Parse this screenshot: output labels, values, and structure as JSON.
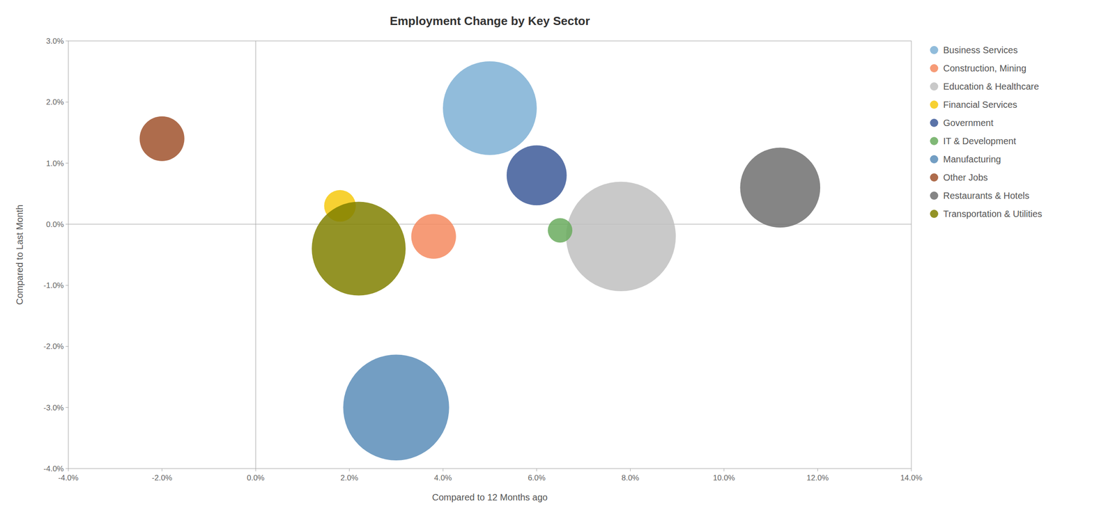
{
  "chart_data": {
    "type": "bubble",
    "title": "Employment Change by Key Sector",
    "x_label": "Compared to 12 Months ago",
    "y_label": "Compared to Last Month",
    "xlim": [
      -0.04,
      0.14
    ],
    "ylim": [
      -0.04,
      0.03
    ],
    "xticks": [
      {
        "value": -0.04,
        "label": "-4.0%"
      },
      {
        "value": -0.02,
        "label": "-2.0%"
      },
      {
        "value": 0.0,
        "label": "0.0%"
      },
      {
        "value": 0.02,
        "label": "2.0%"
      },
      {
        "value": 0.04,
        "label": "4.0%"
      },
      {
        "value": 0.06,
        "label": "6.0%"
      },
      {
        "value": 0.08,
        "label": "8.0%"
      },
      {
        "value": 0.1,
        "label": "10.0%"
      },
      {
        "value": 0.12,
        "label": "12.0%"
      },
      {
        "value": 0.14,
        "label": "14.0%"
      }
    ],
    "yticks": [
      {
        "value": -0.04,
        "label": "-4.0%"
      },
      {
        "value": -0.03,
        "label": "-3.0%"
      },
      {
        "value": -0.02,
        "label": "-2.0%"
      },
      {
        "value": -0.01,
        "label": "-1.0%"
      },
      {
        "value": 0.0,
        "label": "0.0%"
      },
      {
        "value": 0.01,
        "label": "1.0%"
      },
      {
        "value": 0.02,
        "label": "2.0%"
      },
      {
        "value": 0.03,
        "label": "3.0%"
      }
    ],
    "grid": false,
    "legend": "right",
    "series": [
      {
        "name": "Business Services",
        "color": "#7EB0D5",
        "x": [
          0.05
        ],
        "values": [
          0.019
        ],
        "size": [
          22000
        ]
      },
      {
        "name": "Construction, Mining",
        "color": "#F4895F",
        "x": [
          0.038
        ],
        "values": [
          -0.002
        ],
        "size": [
          5000
        ]
      },
      {
        "name": "Education & Healthcare",
        "color": "#C0C0C0",
        "x": [
          0.078
        ],
        "values": [
          -0.002
        ],
        "size": [
          30000
        ]
      },
      {
        "name": "Financial Services",
        "color": "#F6C90E",
        "x": [
          0.018
        ],
        "values": [
          0.003
        ],
        "size": [
          2500
        ]
      },
      {
        "name": "Government",
        "color": "#3D5A99",
        "x": [
          0.06
        ],
        "values": [
          0.008
        ],
        "size": [
          9000
        ]
      },
      {
        "name": "IT & Development",
        "color": "#6AAB5E",
        "x": [
          0.065
        ],
        "values": [
          -0.001
        ],
        "size": [
          1500
        ]
      },
      {
        "name": "Manufacturing",
        "color": "#5B8DB8",
        "x": [
          0.03
        ],
        "values": [
          -0.03
        ],
        "size": [
          28000
        ]
      },
      {
        "name": "Other Jobs",
        "color": "#A0522D",
        "x": [
          -0.02
        ],
        "values": [
          0.014
        ],
        "size": [
          5000
        ]
      },
      {
        "name": "Restaurants & Hotels",
        "color": "#707070",
        "x": [
          0.112
        ],
        "values": [
          0.006
        ],
        "size": [
          16000
        ]
      },
      {
        "name": "Transportation & Utilities",
        "color": "#808000",
        "x": [
          0.022
        ],
        "values": [
          -0.004
        ],
        "size": [
          22000
        ]
      }
    ]
  }
}
